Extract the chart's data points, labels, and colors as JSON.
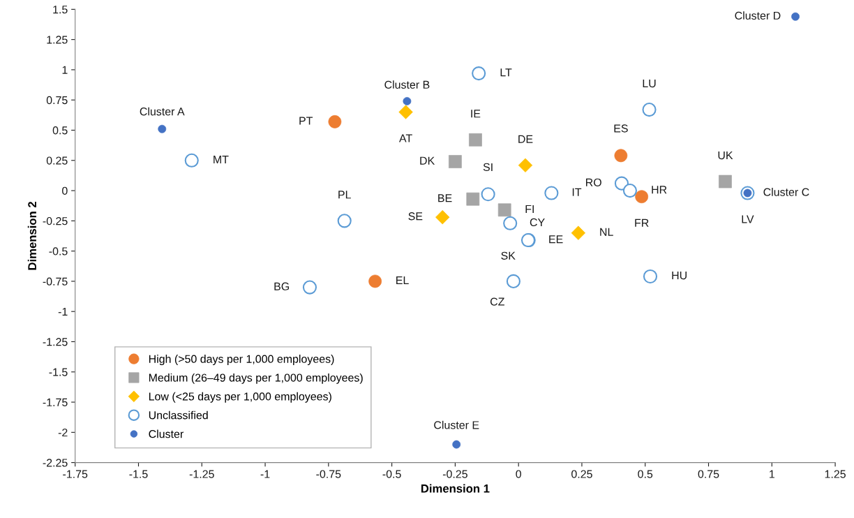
{
  "chart_data": {
    "type": "scatter",
    "xlabel": "Dimension 1",
    "ylabel": "Dimension 2",
    "xlim": [
      -1.75,
      1.25
    ],
    "ylim": [
      -2.25,
      1.5
    ],
    "xticks": [
      -1.75,
      -1.5,
      -1.25,
      -1,
      -0.75,
      -0.5,
      -0.25,
      0,
      0.25,
      0.5,
      0.75,
      1,
      1.25
    ],
    "yticks": [
      -2.25,
      -2,
      -1.75,
      -1.5,
      -1.25,
      -1,
      -0.75,
      -0.5,
      -0.25,
      0,
      0.25,
      0.5,
      0.75,
      1,
      1.25,
      1.5
    ],
    "grid": false,
    "legend": "bottom left",
    "series": [
      {
        "name": "High (>50 days per 1,000 employees)",
        "color": "#ed7d31",
        "marker": "circle",
        "x": [
          -0.725,
          0.404,
          0.486,
          -0.566
        ],
        "values": [
          0.57,
          0.29,
          -0.05,
          -0.75
        ],
        "value_labels": [
          "PT",
          "ES",
          "FR",
          "EL"
        ]
      },
      {
        "name": "Medium (26–49 days per 1,000 employees)",
        "color": "#a5a5a5",
        "marker": "square",
        "x": [
          -0.17,
          -0.25,
          -0.18,
          -0.055,
          0.816
        ],
        "values": [
          0.42,
          0.24,
          -0.07,
          -0.16,
          0.075
        ],
        "value_labels": [
          "IE",
          "DK",
          "BE",
          "FI",
          "UK"
        ]
      },
      {
        "name": "Low (<25 days per 1,000 employees)",
        "color": "#ffc000",
        "marker": "diamond",
        "x": [
          -0.445,
          0.027,
          -0.3,
          0.236
        ],
        "values": [
          0.65,
          0.21,
          -0.22,
          -0.35
        ],
        "value_labels": [
          "AT",
          "DE",
          "SE",
          "NL"
        ]
      },
      {
        "name": "Unclassified",
        "color": "#5b9bd5",
        "marker": "circle",
        "x": [
          -1.29,
          -0.157,
          0.516,
          -0.12,
          -0.687,
          -0.033,
          0.04,
          0.038,
          0.13,
          0.407,
          0.44,
          0.904,
          0.52,
          -0.02,
          -0.824
        ],
        "values": [
          0.25,
          0.97,
          0.67,
          -0.03,
          -0.25,
          -0.27,
          -0.41,
          -0.41,
          -0.02,
          0.06,
          0.0,
          -0.02,
          -0.71,
          -0.75,
          -0.8
        ],
        "value_labels": [
          "MT",
          "LT",
          "LU",
          "SI",
          "PL",
          "CY",
          "EE",
          "SK",
          "IT",
          "RO",
          "HR",
          "LV",
          "HU",
          "CZ",
          "BG"
        ]
      },
      {
        "name": "Cluster",
        "color": "#4472c4",
        "marker": "circle",
        "x": [
          -1.407,
          -0.44,
          0.904,
          1.093,
          -0.245
        ],
        "values": [
          0.51,
          0.74,
          -0.02,
          1.44,
          -2.1
        ],
        "value_labels": [
          "Cluster A",
          "Cluster B",
          "Cluster C",
          "Cluster D",
          "Cluster E"
        ]
      }
    ]
  }
}
